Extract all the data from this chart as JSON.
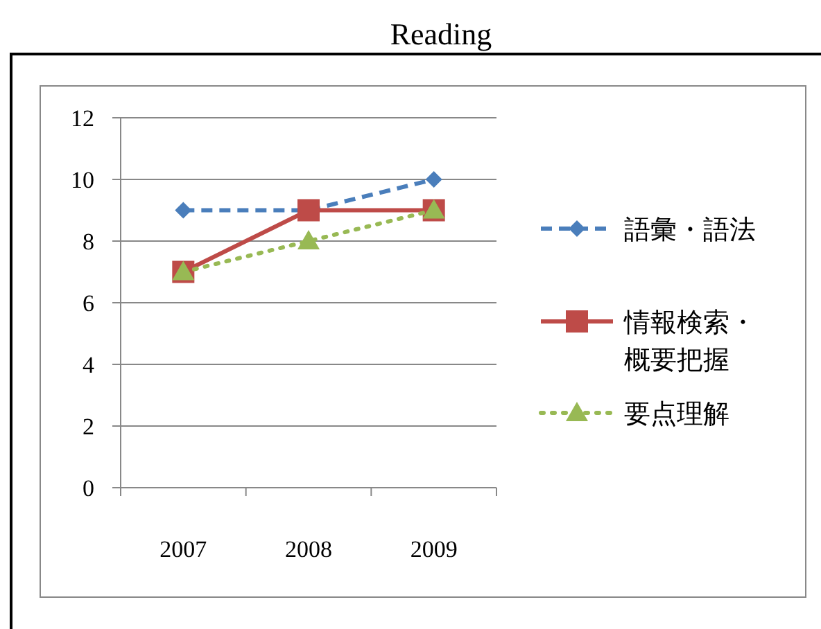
{
  "chart_data": {
    "type": "line",
    "title": "Reading",
    "categories": [
      "2007",
      "2008",
      "2009"
    ],
    "series": [
      {
        "name": "語彙・語法",
        "color": "#4a7ebb",
        "values": [
          9,
          9,
          10
        ],
        "marker": "diamond",
        "line_style": "dashed"
      },
      {
        "name": "情報検索・概要把握",
        "color": "#be4b48",
        "values": [
          7,
          9,
          9
        ],
        "marker": "square",
        "line_style": "solid"
      },
      {
        "name": "要点理解",
        "color": "#98b954",
        "values": [
          7,
          8,
          9
        ],
        "marker": "triangle",
        "line_style": "dotted"
      }
    ],
    "ylim": [
      0,
      12
    ],
    "yticks": [
      0,
      2,
      4,
      6,
      8,
      10,
      12
    ],
    "grid": "y",
    "legend": "right"
  }
}
